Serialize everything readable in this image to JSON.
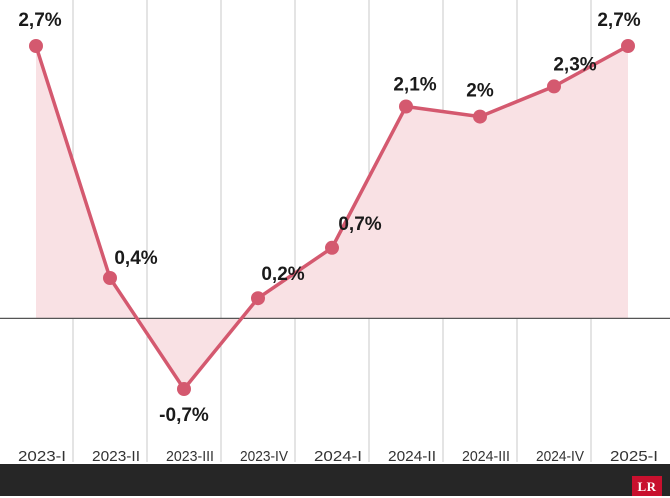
{
  "chart_data": {
    "type": "line",
    "categories": [
      "2023-I",
      "2023-II",
      "2023-III",
      "2023-IV",
      "2024-I",
      "2024-II",
      "2024-III",
      "2024-IV",
      "2025-I"
    ],
    "values": [
      2.7,
      0.4,
      -0.7,
      0.2,
      0.7,
      2.1,
      2.0,
      2.3,
      2.7
    ],
    "data_labels": [
      "2,7%",
      "0,4%",
      "-0,7%",
      "0,2%",
      "0,7%",
      "2,1%",
      "2%",
      "2,3%",
      "2,7%"
    ],
    "title": "",
    "xlabel": "",
    "ylabel": "",
    "ylim": [
      -0.7,
      2.7
    ],
    "grid": "vertical",
    "area_fill": true,
    "colors": {
      "line": "#d4596f",
      "area": "#f9e1e4",
      "grid": "#c8c8c8",
      "baseline": "#555555",
      "text": "#1a1a1a",
      "tick_text": "#333333"
    }
  },
  "footer": {
    "logo_text": "LR",
    "logo_color": "#c8102e",
    "bar_color": "#262626"
  }
}
